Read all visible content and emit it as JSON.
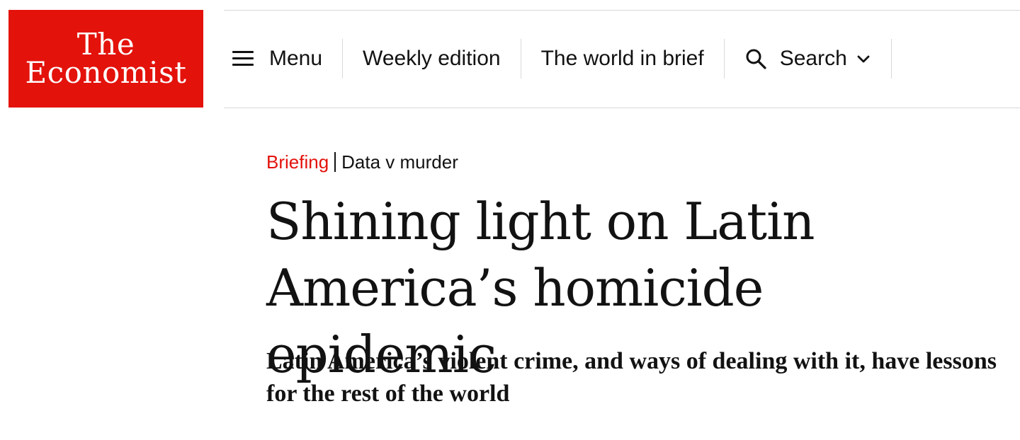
{
  "logo": {
    "line1": "The",
    "line2": "Economist",
    "color": "#e3120b"
  },
  "nav": {
    "menu_label": "Menu",
    "weekly_edition_label": "Weekly edition",
    "world_in_brief_label": "The world in brief",
    "search_label": "Search",
    "icons": {
      "menu": "hamburger-icon",
      "search": "search-icon",
      "dropdown": "chevron-down-icon"
    }
  },
  "article": {
    "section": "Briefing",
    "topic": "Data v murder",
    "headline": "Shining light on Latin America’s homicide epidemic",
    "subheadline": "Latin America’s violent crime, and ways of dealing with it, have lessons for the rest of the world",
    "section_color": "#e3120b"
  }
}
